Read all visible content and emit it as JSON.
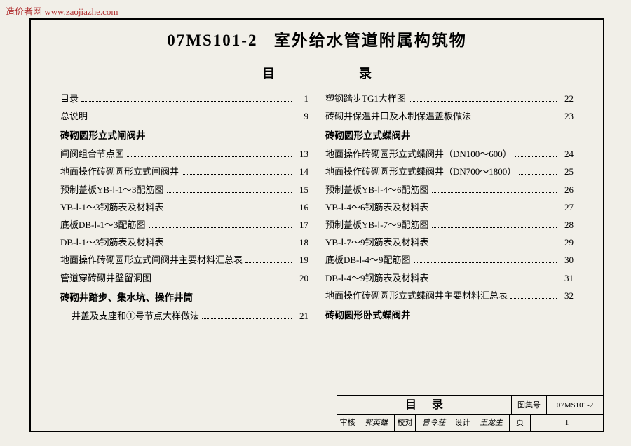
{
  "watermark": "造价者网  www.zaojiazhe.com",
  "title_code": "07MS101-2",
  "title_text": "室外给水管道附属构筑物",
  "toc_heading_left": "目",
  "toc_heading_right": "录",
  "left_col": [
    {
      "type": "entry",
      "label": "目录",
      "page": "1"
    },
    {
      "type": "entry",
      "label": "总说明",
      "page": "9"
    },
    {
      "type": "section",
      "label": "砖砌圆形立式闸阀井"
    },
    {
      "type": "entry",
      "label": "闸阀组合节点图",
      "page": "13"
    },
    {
      "type": "entry",
      "label": "地面操作砖砌圆形立式闸阀井",
      "page": "14"
    },
    {
      "type": "entry",
      "label": "预制盖板YB-Ⅰ-1～3配筋图",
      "page": "15"
    },
    {
      "type": "entry",
      "label": "YB-Ⅰ-1～3钢筋表及材料表",
      "page": "16"
    },
    {
      "type": "entry",
      "label": "底板DB-Ⅰ-1～3配筋图",
      "page": "17"
    },
    {
      "type": "entry",
      "label": "DB-Ⅰ-1～3钢筋表及材料表",
      "page": "18"
    },
    {
      "type": "entry",
      "label": "地面操作砖砌圆形立式闸阀井主要材料汇总表",
      "page": "19"
    },
    {
      "type": "entry",
      "label": "管道穿砖砌井壁留洞图",
      "page": "20"
    },
    {
      "type": "section",
      "label": "砖砌井踏步、集水坑、操作井筒"
    },
    {
      "type": "entry",
      "indent": true,
      "label": "井盖及支座和①号节点大样做法",
      "page": "21"
    }
  ],
  "right_col": [
    {
      "type": "entry",
      "label": "塑钢踏步TG1大样图",
      "page": "22"
    },
    {
      "type": "entry",
      "label": "砖砌井保温井口及木制保温盖板做法",
      "page": "23"
    },
    {
      "type": "section",
      "label": "砖砌圆形立式蝶阀井"
    },
    {
      "type": "entry",
      "label": "地面操作砖砌圆形立式蝶阀井（DN100～600）",
      "page": "24"
    },
    {
      "type": "entry",
      "label": "地面操作砖砌圆形立式蝶阀井（DN700～1800）",
      "page": "25"
    },
    {
      "type": "entry",
      "label": "预制盖板YB-Ⅰ-4～6配筋图",
      "page": "26"
    },
    {
      "type": "entry",
      "label": "YB-Ⅰ-4～6钢筋表及材料表",
      "page": "27"
    },
    {
      "type": "entry",
      "label": "预制盖板YB-Ⅰ-7～9配筋图",
      "page": "28"
    },
    {
      "type": "entry",
      "label": "YB-Ⅰ-7～9钢筋表及材料表",
      "page": "29"
    },
    {
      "type": "entry",
      "label": "底板DB-Ⅰ-4～9配筋图",
      "page": "30"
    },
    {
      "type": "entry",
      "label": "DB-Ⅰ-4～9钢筋表及材料表",
      "page": "31"
    },
    {
      "type": "entry",
      "label": "地面操作砖砌圆形立式蝶阀井主要材料汇总表",
      "page": "32"
    },
    {
      "type": "section",
      "label": "砖砌圆形卧式蝶阀井"
    }
  ],
  "footer": {
    "row1": {
      "title": "目录",
      "set_label": "图集号",
      "code": "07MS101-2"
    },
    "row2": {
      "check_lbl": "审核",
      "check_name": "郭英雄",
      "proof_lbl": "校对",
      "proof_name": "曾令荘",
      "design_lbl": "设计",
      "design_name": "王龙生",
      "page_lbl": "页",
      "page_num": "1"
    }
  }
}
